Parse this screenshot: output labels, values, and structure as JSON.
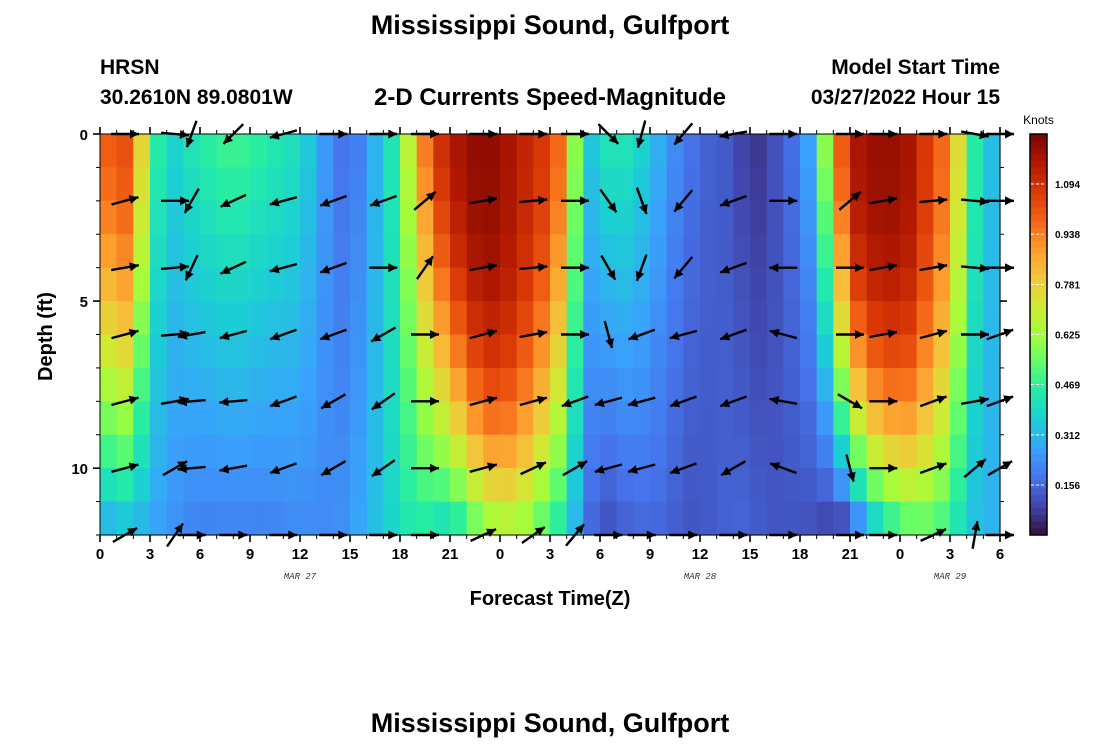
{
  "header": {
    "title": "Mississippi Sound, Gulfport",
    "station_name": "HRSN",
    "station_coords": "30.2610N  89.0801W",
    "subtitle": "2-D Currents Speed-Magnitude",
    "model_start_label": "Model Start Time",
    "model_start_value": "03/27/2022 Hour 15"
  },
  "footer": {
    "title": "Mississippi Sound, Gulfport"
  },
  "colors": {
    "colormap": [
      "#30123b",
      "#4145ab",
      "#4675ed",
      "#39a2fc",
      "#1bcfd4",
      "#24eca6",
      "#61fc6c",
      "#a4fc3b",
      "#d1e834",
      "#f3c63a",
      "#fe9b2d",
      "#f36315",
      "#d93806",
      "#b11901",
      "#7a0402"
    ],
    "arrow": "#000000",
    "axis": "#000000"
  },
  "chart_data": {
    "type": "heatmap",
    "xlabel": "Forecast Time(Z)",
    "ylabel": "Depth (ft)",
    "x_ticks": [
      {
        "label": "0",
        "hour": 0
      },
      {
        "label": "3",
        "hour": 3
      },
      {
        "label": "6",
        "hour": 6
      },
      {
        "label": "9",
        "hour": 9
      },
      {
        "label": "12",
        "hour": 12
      },
      {
        "label": "15",
        "hour": 15
      },
      {
        "label": "18",
        "hour": 18
      },
      {
        "label": "21",
        "hour": 21
      },
      {
        "label": "0",
        "hour": 24
      },
      {
        "label": "3",
        "hour": 27
      },
      {
        "label": "6",
        "hour": 30
      },
      {
        "label": "9",
        "hour": 33
      },
      {
        "label": "12",
        "hour": 36
      },
      {
        "label": "15",
        "hour": 39
      },
      {
        "label": "18",
        "hour": 42
      },
      {
        "label": "21",
        "hour": 45
      },
      {
        "label": "0",
        "hour": 48
      },
      {
        "label": "3",
        "hour": 51
      },
      {
        "label": "6",
        "hour": 54
      }
    ],
    "date_labels": [
      {
        "label": "MAR 27",
        "hour": 12
      },
      {
        "label": "MAR 28",
        "hour": 36
      },
      {
        "label": "MAR 29",
        "hour": 51
      }
    ],
    "y_ticks": [
      {
        "label": "0",
        "depth": 0
      },
      {
        "label": "5",
        "depth": 5
      },
      {
        "label": "10",
        "depth": 10
      }
    ],
    "xlim_hours": [
      0,
      54
    ],
    "ylim_ft": [
      0,
      12
    ],
    "colorbar": {
      "unit": "Knots",
      "range": [
        0,
        1.25
      ],
      "ticks": [
        "1.094",
        "0.938",
        "0.781",
        "0.625",
        "0.469",
        "0.312",
        "0.156"
      ],
      "tick_values": [
        1.094,
        0.938,
        0.781,
        0.625,
        0.469,
        0.312,
        0.156
      ]
    },
    "speed_profile": {
      "hours": [
        0,
        1,
        2,
        3,
        4,
        5,
        6,
        8,
        10,
        12,
        14,
        15,
        16,
        17,
        18,
        19,
        20,
        21,
        22,
        23,
        24,
        25,
        26,
        27,
        28,
        29,
        30,
        31,
        32,
        33,
        34,
        35,
        36,
        38,
        39,
        40,
        42,
        43,
        44,
        45,
        46,
        47,
        48,
        49,
        50,
        51,
        52,
        53,
        54
      ],
      "surface_knots": [
        0.95,
        1.05,
        1.0,
        0.55,
        0.35,
        0.4,
        0.45,
        0.5,
        0.45,
        0.4,
        0.2,
        0.15,
        0.25,
        0.35,
        0.5,
        0.85,
        1.05,
        1.15,
        1.2,
        1.22,
        1.2,
        1.15,
        1.1,
        1.05,
        0.9,
        0.3,
        0.4,
        0.45,
        0.4,
        0.35,
        0.25,
        0.2,
        0.15,
        0.12,
        0.05,
        0.08,
        0.2,
        0.35,
        0.85,
        1.15,
        1.2,
        1.2,
        1.2,
        1.15,
        1.0,
        0.95,
        0.55,
        0.35,
        0.3
      ],
      "bottom_knots": [
        0.25,
        0.3,
        0.3,
        0.28,
        0.25,
        0.22,
        0.2,
        0.2,
        0.2,
        0.22,
        0.22,
        0.25,
        0.3,
        0.35,
        0.4,
        0.45,
        0.4,
        0.35,
        0.45,
        0.55,
        0.6,
        0.6,
        0.55,
        0.45,
        0.4,
        0.2,
        0.1,
        0.12,
        0.15,
        0.15,
        0.15,
        0.12,
        0.12,
        0.15,
        0.15,
        0.12,
        0.12,
        0.1,
        0.05,
        0.05,
        0.25,
        0.35,
        0.45,
        0.5,
        0.5,
        0.45,
        0.35,
        0.3,
        0.3
      ],
      "depth_shape_exponent": [
        1.2,
        1.8,
        1.4,
        1.0,
        1.0,
        1.0,
        1.0,
        1.0,
        1.0,
        1.0,
        1.0,
        1.0,
        1.0,
        1.0,
        1.0,
        1.0,
        1.4,
        1.8,
        2.2,
        2.6,
        2.8,
        2.6,
        2.2,
        1.8,
        1.4,
        1.0,
        1.0,
        1.0,
        1.0,
        1.0,
        1.0,
        1.0,
        1.0,
        1.0,
        1.0,
        1.0,
        1.0,
        1.0,
        1.4,
        2.0,
        2.4,
        2.6,
        2.6,
        2.4,
        2.0,
        1.6,
        1.2,
        1.0,
        1.0
      ]
    },
    "vector_depths_ft": [
      0,
      2,
      4,
      6,
      8,
      10,
      12
    ],
    "vector_columns": [
      {
        "hour": 1.5,
        "angles_deg": [
          0,
          15,
          10,
          15,
          15,
          15,
          30
        ]
      },
      {
        "hour": 4.5,
        "angles_deg": [
          -5,
          0,
          5,
          5,
          10,
          30,
          55
        ]
      },
      {
        "hour": 5.5,
        "angles_deg": [
          -110,
          -120,
          -115,
          -170,
          -175,
          -175,
          0
        ]
      },
      {
        "hour": 8,
        "angles_deg": [
          -135,
          -155,
          -155,
          -165,
          -175,
          -170,
          0
        ]
      },
      {
        "hour": 11,
        "angles_deg": [
          -165,
          -165,
          -165,
          -160,
          -160,
          -160,
          0
        ]
      },
      {
        "hour": 14,
        "angles_deg": [
          0,
          -160,
          -160,
          -160,
          -150,
          -150,
          0
        ]
      },
      {
        "hour": 17,
        "angles_deg": [
          0,
          -160,
          0,
          -150,
          -145,
          -145,
          0
        ]
      },
      {
        "hour": 19.5,
        "angles_deg": [
          0,
          40,
          55,
          0,
          0,
          0,
          0
        ]
      },
      {
        "hour": 23,
        "angles_deg": [
          0,
          10,
          10,
          15,
          15,
          15,
          25
        ]
      },
      {
        "hour": 26,
        "angles_deg": [
          0,
          5,
          5,
          10,
          15,
          25,
          35
        ]
      },
      {
        "hour": 28.5,
        "angles_deg": [
          0,
          0,
          0,
          0,
          -160,
          30,
          50
        ]
      },
      {
        "hour": 30.5,
        "angles_deg": [
          -45,
          -55,
          -60,
          -75,
          -165,
          -165,
          0
        ]
      },
      {
        "hour": 32.5,
        "angles_deg": [
          -105,
          -70,
          -110,
          -160,
          -165,
          -165,
          0
        ]
      },
      {
        "hour": 35,
        "angles_deg": [
          -130,
          -130,
          -130,
          -165,
          -160,
          -160,
          0
        ]
      },
      {
        "hour": 38,
        "angles_deg": [
          -170,
          -160,
          -160,
          -160,
          -160,
          -150,
          0
        ]
      },
      {
        "hour": 41,
        "angles_deg": [
          0,
          0,
          180,
          165,
          170,
          160,
          0
        ]
      },
      {
        "hour": 45,
        "angles_deg": [
          0,
          40,
          0,
          0,
          -30,
          -75,
          0
        ]
      },
      {
        "hour": 47,
        "angles_deg": [
          0,
          10,
          10,
          10,
          0,
          0,
          0
        ]
      },
      {
        "hour": 50,
        "angles_deg": [
          0,
          5,
          10,
          15,
          20,
          20,
          25
        ]
      },
      {
        "hour": 52.5,
        "angles_deg": [
          -10,
          -5,
          -5,
          0,
          10,
          40,
          80
        ]
      },
      {
        "hour": 54,
        "angles_deg": [
          0,
          0,
          0,
          20,
          20,
          30,
          0
        ]
      }
    ]
  }
}
